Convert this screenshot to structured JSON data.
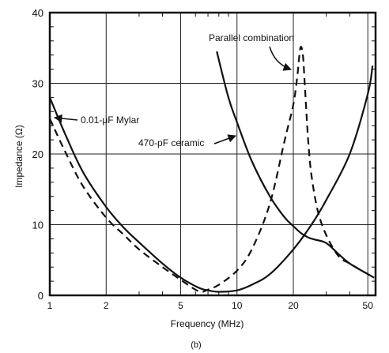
{
  "chart_data": {
    "type": "line",
    "xlabel": "Frequency (MHz)",
    "ylabel": "Impedance (Ω)",
    "caption": "(b)",
    "x_scale": "log",
    "xlim": [
      1,
      55
    ],
    "ylim": [
      0,
      40
    ],
    "grid": true,
    "x_ticks": [
      1,
      2,
      5,
      10,
      20,
      50
    ],
    "x_tick_labels": [
      "1",
      "2",
      "5",
      "10",
      "20",
      "50"
    ],
    "y_ticks": [
      0,
      10,
      20,
      30,
      40
    ],
    "y_tick_labels": [
      "0",
      "10",
      "20",
      "30",
      "40"
    ],
    "series": [
      {
        "name": "0.01-μF Mylar",
        "style": "solid",
        "x": [
          1,
          1.2,
          1.5,
          2,
          2.5,
          3,
          4,
          5,
          6,
          6.5,
          7,
          8,
          10,
          12,
          15,
          20,
          25,
          30,
          40,
          50,
          53
        ],
        "y": [
          28,
          23,
          17.5,
          12.5,
          9.5,
          7.5,
          4.5,
          2.5,
          1.3,
          0.9,
          0.7,
          0.5,
          0.7,
          1.5,
          3,
          6.5,
          10,
          13.5,
          20,
          28.5,
          32.5
        ]
      },
      {
        "name": "470-pF ceramic",
        "style": "solid",
        "x": [
          7.8,
          9,
          10,
          12,
          15,
          18,
          20,
          22,
          24,
          26,
          30,
          35,
          40,
          50,
          54
        ],
        "y": [
          34.5,
          28,
          24.5,
          19,
          14,
          11,
          9.8,
          8.8,
          8.2,
          7.9,
          7.4,
          5.8,
          4.5,
          3,
          2.5
        ]
      },
      {
        "name": "Parallel combination",
        "style": "dashed",
        "x": [
          1,
          1.2,
          1.5,
          2,
          2.5,
          3,
          4,
          5,
          6,
          6.5,
          7,
          8,
          10,
          12,
          15,
          18,
          20,
          21,
          21.8,
          22.5,
          23,
          24,
          25,
          27,
          30,
          35,
          40,
          50,
          54
        ],
        "y": [
          25,
          20.5,
          15.5,
          11,
          8.5,
          6.5,
          4,
          2.2,
          0.8,
          0.5,
          0.8,
          1.5,
          3.5,
          6.5,
          13,
          22,
          27,
          31,
          35,
          34,
          30,
          22,
          17,
          12,
          8.5,
          5.5,
          4.5,
          3,
          2.5
        ]
      }
    ],
    "annotations": [
      {
        "text": "Parallel combination",
        "target": "Parallel combination"
      },
      {
        "text": "0.01-μF Mylar",
        "target": "0.01-μF Mylar"
      },
      {
        "text": "470-pF ceramic",
        "target": "470-pF ceramic"
      }
    ]
  }
}
